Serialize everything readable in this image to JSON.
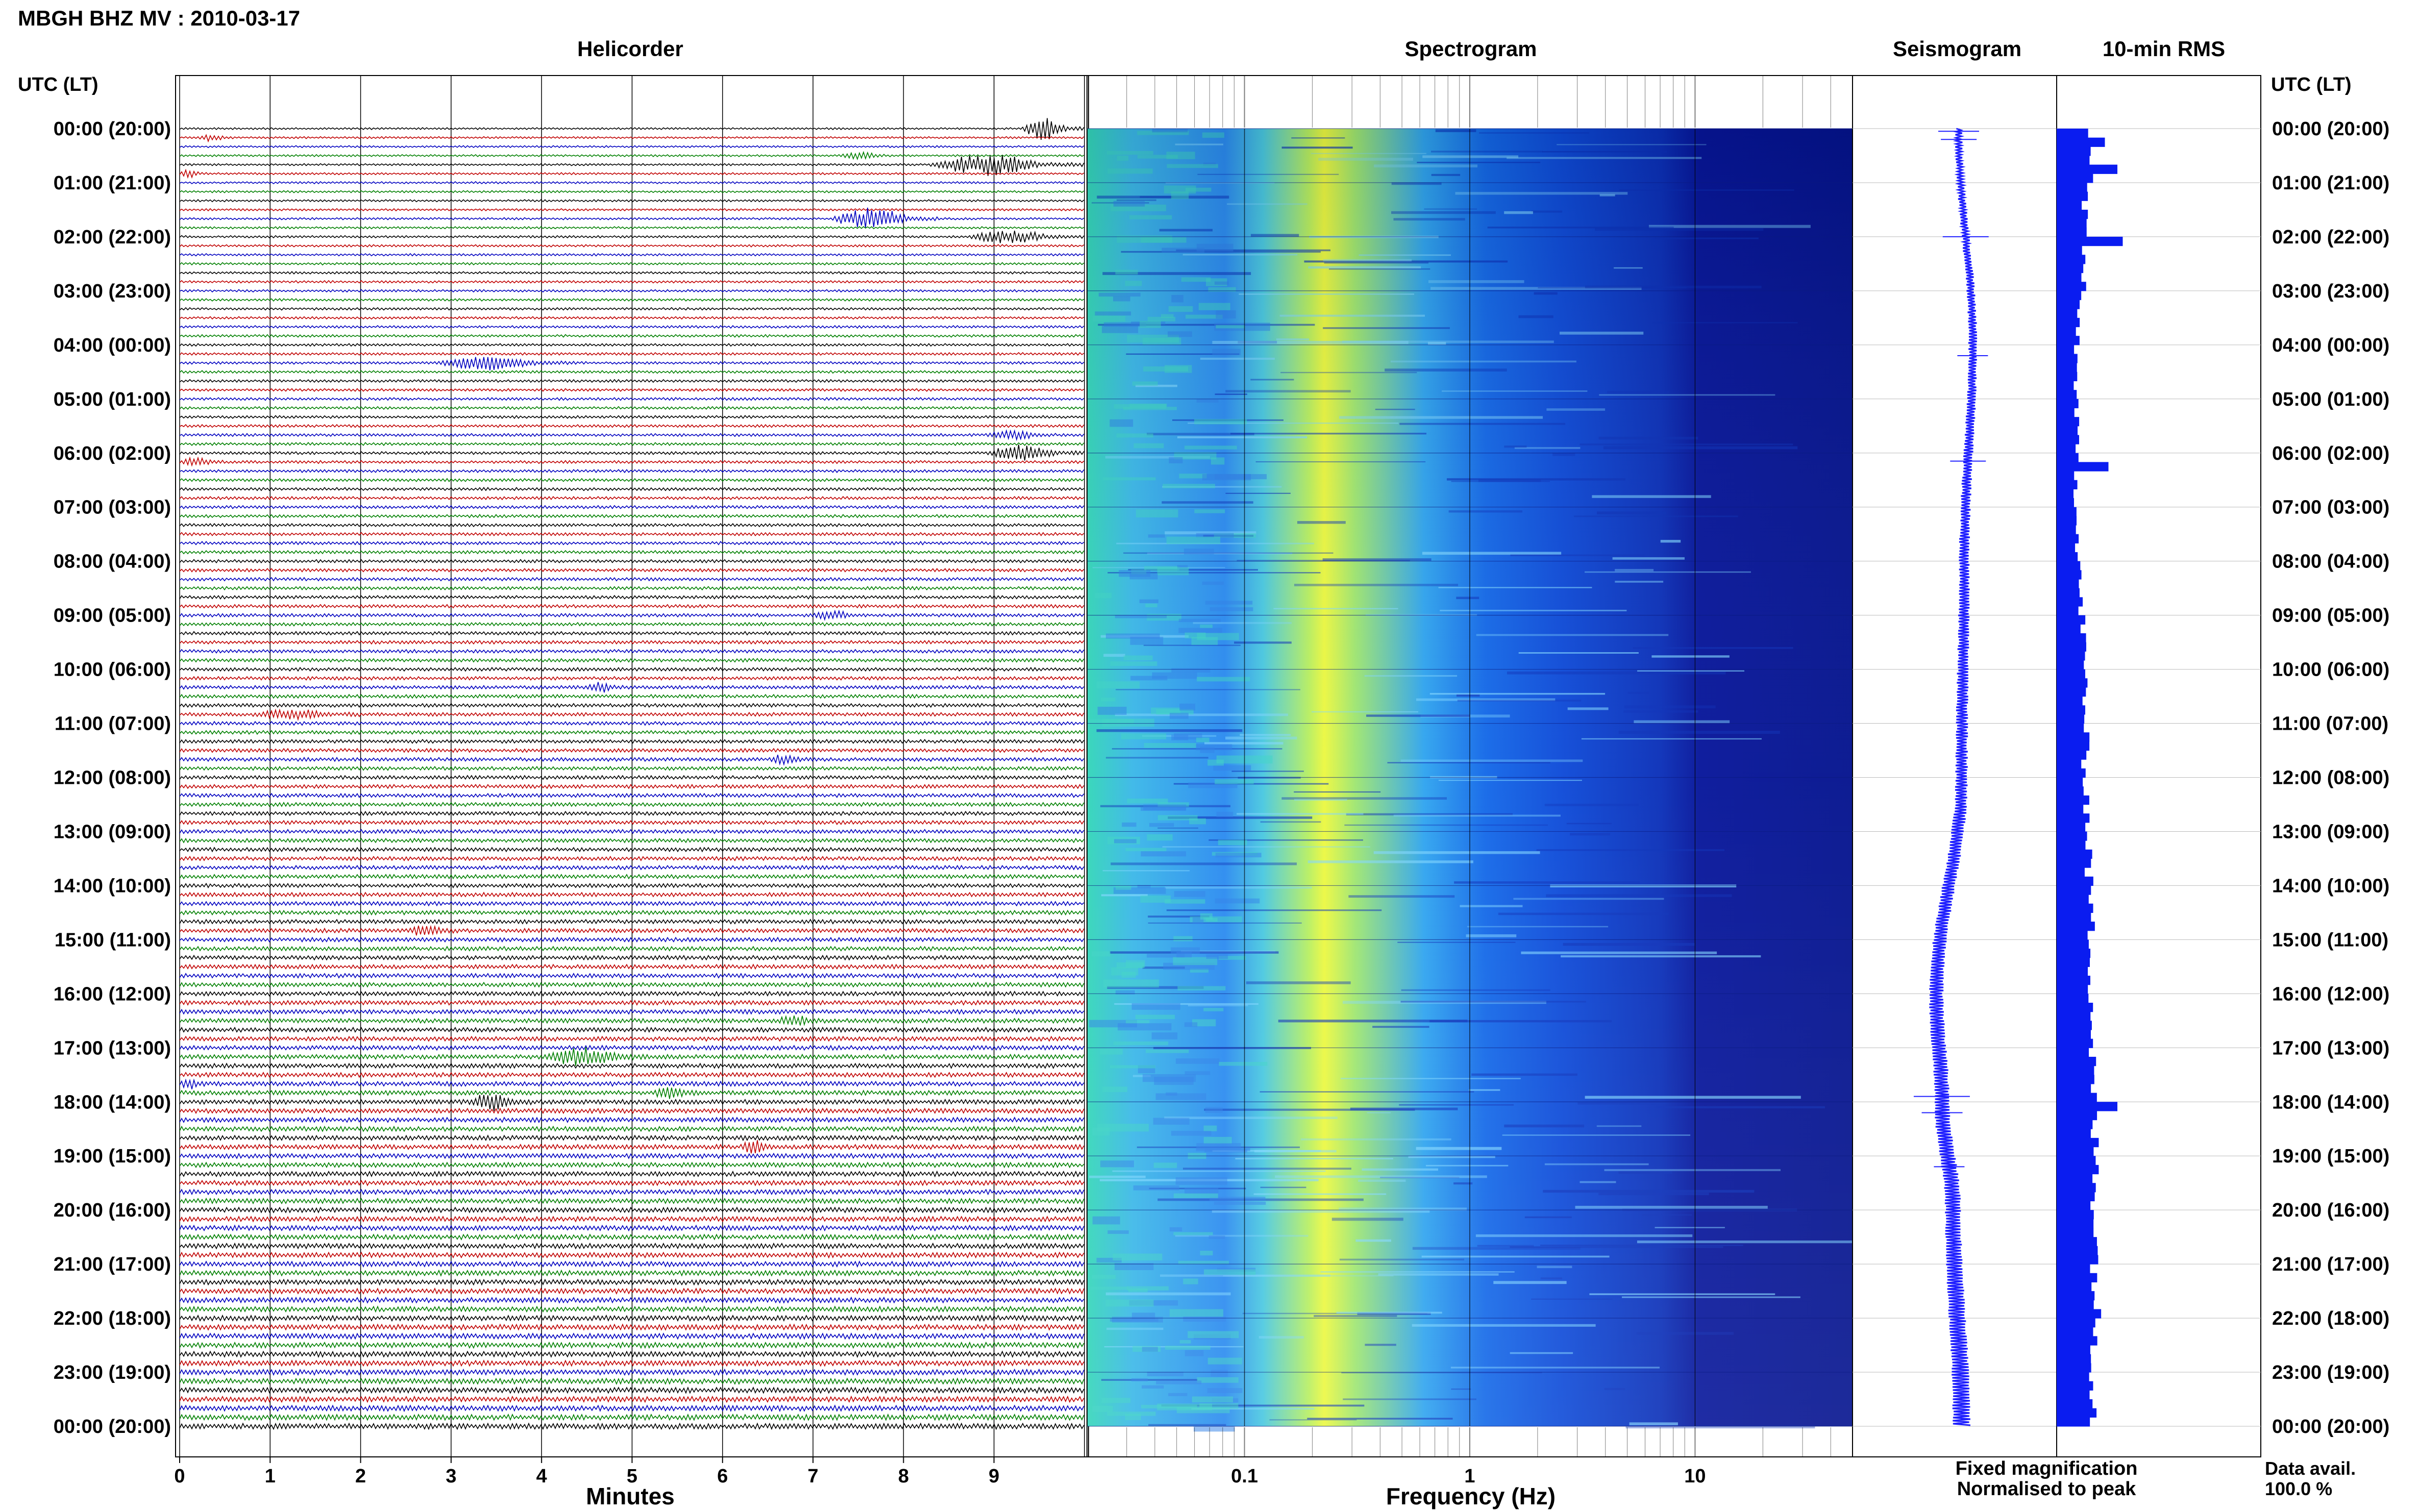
{
  "header": {
    "title": "MBGH BHZ MV : 2010-03-17",
    "utc_label_left": "UTC (LT)",
    "utc_label_right": "UTC (LT)"
  },
  "panels": {
    "helicorder": "Helicorder",
    "spectrogram": "Spectrogram",
    "seismogram": "Seismogram",
    "rms": "10-min RMS"
  },
  "time_labels": [
    "00:00 (20:00)",
    "01:00 (21:00)",
    "02:00 (22:00)",
    "03:00 (23:00)",
    "04:00 (00:00)",
    "05:00 (01:00)",
    "06:00 (02:00)",
    "07:00 (03:00)",
    "08:00 (04:00)",
    "09:00 (05:00)",
    "10:00 (06:00)",
    "11:00 (07:00)",
    "12:00 (08:00)",
    "13:00 (09:00)",
    "14:00 (10:00)",
    "15:00 (11:00)",
    "16:00 (12:00)",
    "17:00 (13:00)",
    "18:00 (14:00)",
    "19:00 (15:00)",
    "20:00 (16:00)",
    "21:00 (17:00)",
    "22:00 (18:00)",
    "23:00 (19:00)",
    "00:00 (20:00)"
  ],
  "footer": {
    "helicorder_axis": "Minutes",
    "spectrogram_axis": "Frequency (Hz)",
    "legend_fixed": "Fixed magnification",
    "legend_normalised": "Normalised to peak",
    "data_avail_label": "Data avail.",
    "data_avail_value": "100.0 %"
  },
  "colors": {
    "trace_cycle": [
      "#000000",
      "#c00000",
      "#0000c0",
      "#008000"
    ],
    "fixed_magnification": "#1f1fff",
    "normalised_to_peak": "#e00000",
    "rms_fill": "#0a1cf0"
  },
  "chart_data": [
    {
      "type": "line",
      "name": "helicorder",
      "xlabel": "Minutes",
      "x_ticks": [
        "0",
        "1",
        "2",
        "3",
        "4",
        "5",
        "6",
        "7",
        "8",
        "9"
      ],
      "xlim": [
        0,
        10
      ],
      "rows_per_hour": 6,
      "row_count": 144,
      "events": [
        {
          "row": 0,
          "minute": 9.3,
          "duration": 0.7,
          "amp": 3.0
        },
        {
          "row": 1,
          "minute": 0.2,
          "duration": 0.4,
          "amp": 1.0
        },
        {
          "row": 3,
          "minute": 7.3,
          "duration": 0.6,
          "amp": 1.0
        },
        {
          "row": 4,
          "minute": 8.3,
          "duration": 1.7,
          "amp": 3.0
        },
        {
          "row": 5,
          "minute": 0.0,
          "duration": 0.3,
          "amp": 1.0
        },
        {
          "row": 10,
          "minute": 7.2,
          "duration": 1.2,
          "amp": 3.0
        },
        {
          "row": 12,
          "minute": 8.7,
          "duration": 1.3,
          "amp": 1.8
        },
        {
          "row": 26,
          "minute": 2.8,
          "duration": 1.6,
          "amp": 1.8
        },
        {
          "row": 34,
          "minute": 8.9,
          "duration": 0.8,
          "amp": 1.2
        },
        {
          "row": 36,
          "minute": 8.9,
          "duration": 1.1,
          "amp": 2.0
        },
        {
          "row": 37,
          "minute": 0.0,
          "duration": 0.5,
          "amp": 1.0
        },
        {
          "row": 54,
          "minute": 7.0,
          "duration": 0.6,
          "amp": 1.2
        },
        {
          "row": 62,
          "minute": 4.5,
          "duration": 0.4,
          "amp": 1.2
        },
        {
          "row": 65,
          "minute": 0.8,
          "duration": 1.2,
          "amp": 1.2
        },
        {
          "row": 70,
          "minute": 6.5,
          "duration": 0.5,
          "amp": 1.0
        },
        {
          "row": 89,
          "minute": 2.5,
          "duration": 0.6,
          "amp": 1.2
        },
        {
          "row": 99,
          "minute": 6.6,
          "duration": 0.5,
          "amp": 1.3
        },
        {
          "row": 103,
          "minute": 4.0,
          "duration": 1.2,
          "amp": 2.2
        },
        {
          "row": 106,
          "minute": 0.0,
          "duration": 0.3,
          "amp": 1.0
        },
        {
          "row": 107,
          "minute": 5.2,
          "duration": 0.6,
          "amp": 1.5
        },
        {
          "row": 108,
          "minute": 3.2,
          "duration": 0.7,
          "amp": 2.0
        },
        {
          "row": 113,
          "minute": 6.2,
          "duration": 0.4,
          "amp": 1.5
        }
      ]
    },
    {
      "type": "heatmap",
      "name": "spectrogram",
      "xlabel": "Frequency (Hz)",
      "x_scale": "log",
      "x_ticks": [
        "0.1",
        "1",
        "10"
      ],
      "xlim": [
        0.02,
        50
      ],
      "ylim_hours_utc": [
        0,
        24
      ],
      "peak_band_hz": [
        0.15,
        0.4
      ]
    },
    {
      "type": "line",
      "name": "seismogram",
      "ylim_hours_utc": [
        0,
        24
      ],
      "note_points_hours": [
        0,
        4,
        8,
        12,
        16,
        18,
        20,
        24
      ],
      "offset": [
        0.0,
        0.25,
        0.1,
        0.05,
        -0.4,
        -0.3,
        -0.1,
        0.05
      ]
    },
    {
      "type": "bar",
      "name": "10-min RMS",
      "orientation": "horizontal",
      "bins_per_hour": 6,
      "ylim_hours_utc": [
        0,
        24
      ],
      "hourly_typical_rms": [
        1.0,
        0.8,
        0.75,
        0.6,
        0.55,
        0.55,
        0.55,
        0.6,
        0.65,
        0.75,
        0.8,
        0.8,
        0.85,
        0.9,
        0.95,
        1.0,
        1.0,
        1.0,
        1.05,
        1.1,
        1.1,
        1.1,
        1.1,
        1.05
      ],
      "spikes": [
        {
          "hour_bin": 1,
          "value": 1.35
        },
        {
          "hour_bin": 4,
          "value": 1.7
        },
        {
          "hour_bin": 12,
          "value": 1.85
        },
        {
          "hour_bin": 37,
          "value": 1.45
        },
        {
          "hour_bin": 108,
          "value": 1.7
        }
      ]
    }
  ]
}
